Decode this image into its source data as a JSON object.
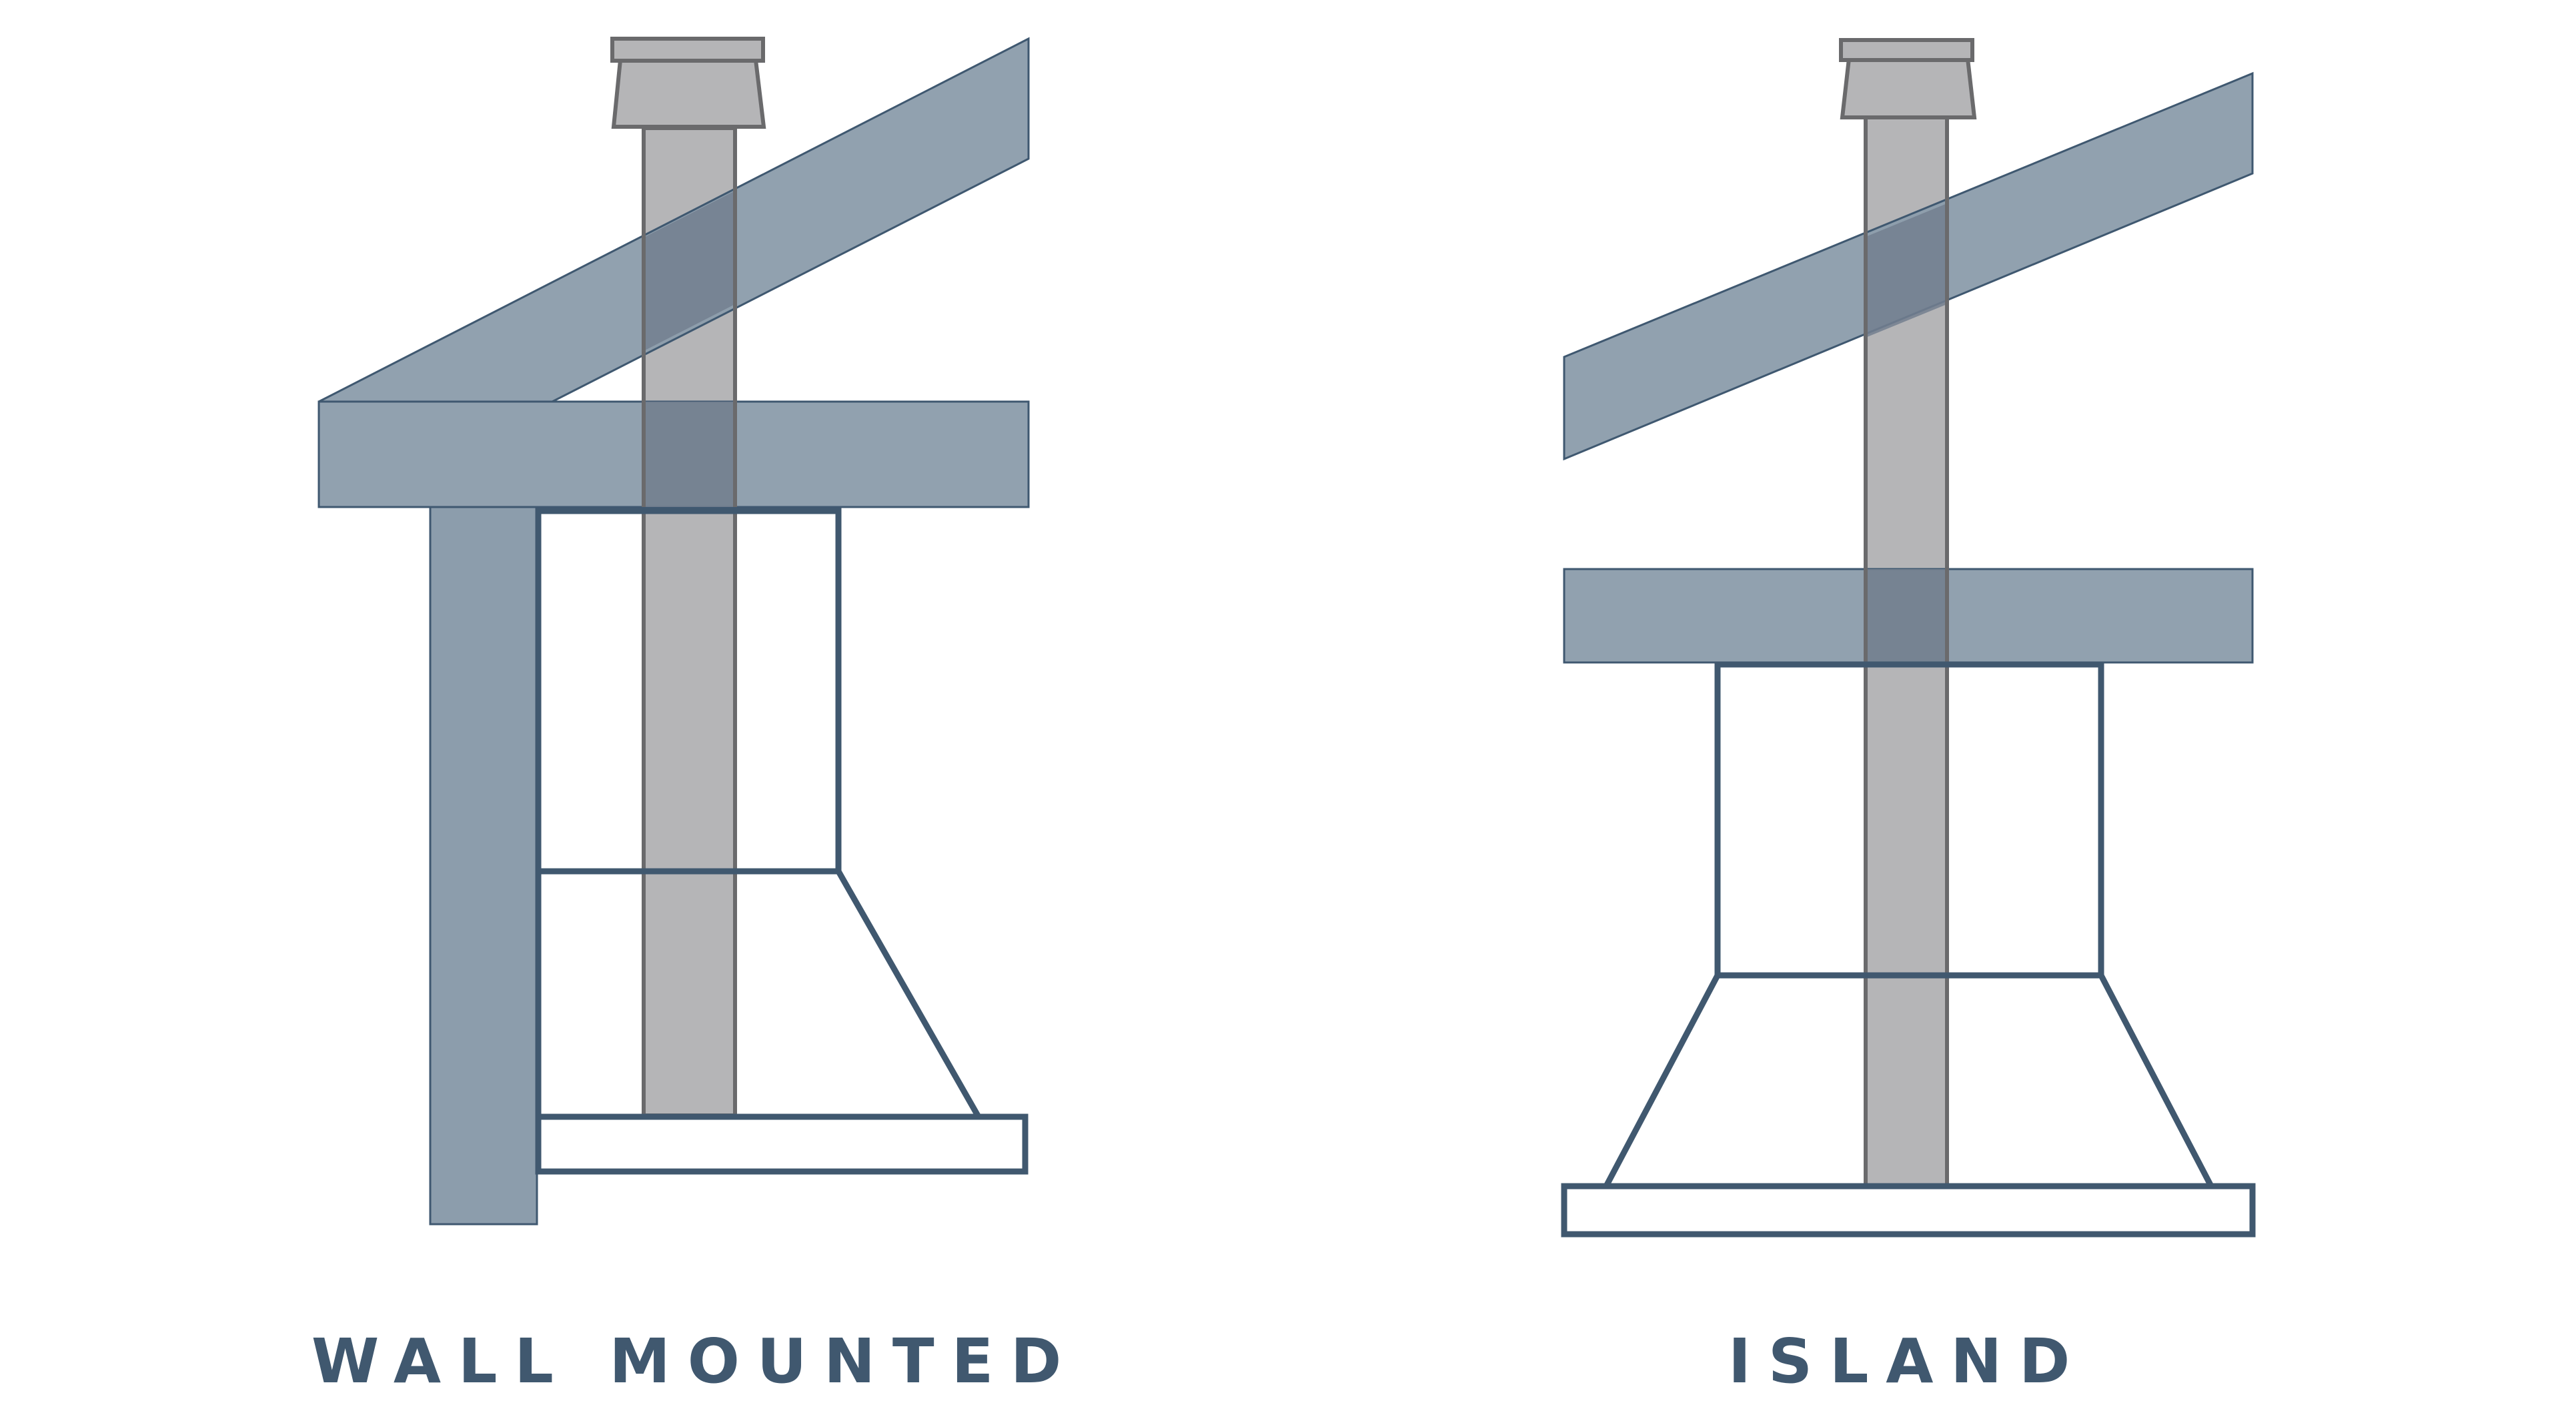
{
  "diagrams": [
    {
      "id": "wall",
      "label": "WALL MOUNTED"
    },
    {
      "id": "island",
      "label": "ISLAND"
    }
  ],
  "colors": {
    "beam_fill": "#8c9dac",
    "beam_stroke": "#3f5870",
    "flue_fill": "#b5b5b7",
    "flue_stroke": "#6a6a6c",
    "outline": "#40586f",
    "label": "#40586f"
  }
}
